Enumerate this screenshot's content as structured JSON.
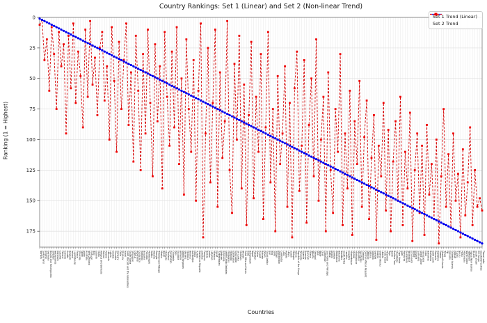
{
  "title": "Country Rankings: Set 1 (Linear) and Set 2 (Non-linear Trend)",
  "axes": {
    "x_label": "Countries",
    "y_label": "Ranking (1 = Highest)"
  },
  "legend": {
    "entries": [
      {
        "label": "Set 1 Trend (Linear)",
        "marker": "circle",
        "color": "#0000ee"
      },
      {
        "label": "Set 2 Trend",
        "marker": "square",
        "color": "#ee0000"
      }
    ]
  },
  "colors": {
    "blue_series": "#0000ee",
    "red_marker": "#ee0000",
    "red_line": "#d40000",
    "grid_h": "#e3e3e3",
    "grid_v": "#dedede",
    "spine": "#666666",
    "tick_text": "#222222"
  },
  "chart_data": {
    "type": "line",
    "title": "Country Rankings: Set 1 (Linear) and Set 2 (Non-linear Trend)",
    "xlabel": "Countries",
    "ylabel": "Ranking (1 = Highest)",
    "y_ticks": [
      0,
      25,
      50,
      75,
      100,
      125,
      150,
      175
    ],
    "y_axis_inverted": true,
    "ylim": [
      0,
      188
    ],
    "grid": true,
    "legend_position": "upper right",
    "categories": [
      "Norway",
      "Switzerland",
      "Iceland",
      "Germany",
      "Bosnia and Herzegovina",
      "Sweden",
      "Netherlands",
      "Denmark",
      "Czechia",
      "Finland",
      "Canada",
      "Austria",
      "Belgium",
      "Ireland",
      "Luxembourg",
      "France",
      "Slovenia",
      "Spain",
      "Japan",
      "Australia",
      "New Zealand",
      "Portugal",
      "Italy",
      "Estonia",
      "Malta",
      "Antigua and Barbuda",
      "Greece",
      "Poland",
      "Lithuania",
      "Latvia",
      "Croatia",
      "Slovakia",
      "Hungary",
      "Chile",
      "Uruguay",
      "Israel",
      "Saint Vincent and the Grenadines",
      "South Korea",
      "Singapore",
      "Cyprus",
      "Argentina",
      "Costa Rica",
      "Romania",
      "Bulgaria",
      "Panama",
      "Montenegro",
      "Serbia",
      "Albania",
      "Georgia",
      "Trinidad and Tobago",
      "Mexico",
      "Brazil",
      "Malaysia",
      "Thailand",
      "Kazakhstan",
      "Colombia",
      "Peru",
      "Ecuador",
      "Armenia",
      "United Kingdom",
      "Ukraine",
      "Moldova",
      "Belarus",
      "Azerbaijan",
      "China",
      "Tunisia",
      "Dominican Republic",
      "Jamaica",
      "Paraguay",
      "Bolivia",
      "Jordan",
      "Lebanon",
      "Morocco",
      "Egypt",
      "Turkmenistan",
      "Vietnam",
      "Indonesia",
      "United Arab Emirates",
      "Philippines",
      "Mongolia",
      "Uzbekistan",
      "Kyrgyzstan",
      "Sri Lanka",
      "Maldives",
      "Bhutan",
      "Saint Kitts and Nevis",
      "India",
      "Bangladesh",
      "Nepal",
      "Pakistan",
      "Qatar",
      "Kuwait",
      "Bahrain",
      "Oman",
      "Saudi Arabia",
      "Iran",
      "Iraq",
      "Syria",
      "Yemen",
      "Afghanistan",
      "Cambodia",
      "Laos",
      "Algeria",
      "Libya",
      "Sudan",
      "Ethiopia",
      "Kenya",
      "Republic of the Congo",
      "Tanzania",
      "Uganda",
      "Rwanda",
      "Burundi",
      "Ghana",
      "Nigeria",
      "Senegal",
      "Mali",
      "Niger",
      "Chad",
      "Cameroon",
      "Sao Tome and Principe",
      "Gabon",
      "Angola",
      "Zambia",
      "Zimbabwe",
      "Botswana",
      "Namibia",
      "South Africa",
      "Lesotho",
      "Eswatini",
      "Mozambique",
      "Malawi",
      "Madagascar",
      "Mauritius",
      "Seychelles",
      "Comoros",
      "Central African Republic",
      "Djibouti",
      "Eritrea",
      "Somalia",
      "Gambia",
      "Guinea",
      "Guinea-Bissau",
      "Liberia",
      "Ivory Coast",
      "Myanmar",
      "Togo",
      "Benin",
      "Burkina Faso",
      "Mauritania",
      "Cape Verde",
      "Haiti",
      "Honduras",
      "Guatemala",
      "Nicaragua",
      "El Salvador",
      "Belize",
      "Guyana",
      "Suriname",
      "Sierra Leone",
      "Venezuela",
      "Cuba",
      "Bahamas",
      "Barbados",
      "Saint Lucia",
      "Grenada",
      "Dominica",
      "Samoa",
      "Marshall Islands",
      "Tonga",
      "Fiji",
      "Vanuatu",
      "Solomon Islands",
      "Kiribati",
      "Tuvalu",
      "Nauru",
      "Palau",
      "Micronesia",
      "North Korea",
      "Tajikistan",
      "Papua New Guinea",
      "Brunei",
      "South Sudan",
      "DR Congo",
      "Equatorial Guinea",
      "Timor-Leste"
    ],
    "series": [
      {
        "name": "Set 1 Trend (Linear)",
        "color": "#0000ee",
        "marker": "circle",
        "line_style": "solid",
        "values": [
          1,
          2,
          3,
          4,
          5,
          6,
          7,
          8,
          9,
          10,
          11,
          12,
          13,
          14,
          15,
          16,
          17,
          18,
          19,
          20,
          21,
          22,
          23,
          24,
          25,
          26,
          27,
          28,
          29,
          30,
          31,
          32,
          33,
          34,
          35,
          36,
          37,
          38,
          39,
          40,
          41,
          42,
          43,
          44,
          45,
          46,
          47,
          48,
          49,
          50,
          51,
          52,
          53,
          54,
          55,
          56,
          57,
          58,
          59,
          60,
          61,
          62,
          63,
          64,
          65,
          66,
          67,
          68,
          69,
          70,
          71,
          72,
          73,
          74,
          75,
          76,
          77,
          78,
          79,
          80,
          81,
          82,
          83,
          84,
          85,
          86,
          87,
          88,
          89,
          90,
          91,
          92,
          93,
          94,
          95,
          96,
          97,
          98,
          99,
          100,
          101,
          102,
          103,
          104,
          105,
          106,
          107,
          108,
          109,
          110,
          111,
          112,
          113,
          114,
          115,
          116,
          117,
          118,
          119,
          120,
          121,
          122,
          123,
          124,
          125,
          126,
          127,
          128,
          129,
          130,
          131,
          132,
          133,
          134,
          135,
          136,
          137,
          138,
          139,
          140,
          141,
          142,
          143,
          144,
          145,
          146,
          147,
          148,
          149,
          150,
          151,
          152,
          153,
          154,
          155,
          156,
          157,
          158,
          159,
          160,
          161,
          162,
          163,
          164,
          165,
          166,
          167,
          168,
          169,
          170,
          171,
          172,
          173,
          174,
          175,
          176,
          177,
          178,
          179,
          180,
          181,
          182,
          183,
          184,
          185
        ]
      },
      {
        "name": "Set 2 Trend",
        "color": "#ee0000",
        "line_color": "#d40000",
        "marker": "square",
        "line_style": "dashed",
        "values": [
          6,
          2,
          35,
          18,
          60,
          8,
          30,
          75,
          12,
          40,
          22,
          95,
          15,
          58,
          5,
          70,
          28,
          48,
          90,
          10,
          65,
          3,
          55,
          33,
          80,
          25,
          12,
          68,
          40,
          100,
          8,
          52,
          110,
          20,
          75,
          35,
          5,
          88,
          45,
          118,
          15,
          60,
          125,
          30,
          95,
          10,
          70,
          130,
          22,
          85,
          40,
          140,
          12,
          65,
          105,
          28,
          90,
          8,
          120,
          50,
          145,
          18,
          75,
          110,
          35,
          150,
          60,
          5,
          180,
          95,
          25,
          135,
          70,
          10,
          155,
          45,
          115,
          85,
          3,
          125,
          160,
          38,
          100,
          15,
          140,
          55,
          170,
          80,
          20,
          148,
          65,
          110,
          30,
          165,
          90,
          12,
          135,
          75,
          175,
          48,
          120,
          95,
          40,
          155,
          70,
          180,
          58,
          28,
          142,
          105,
          35,
          168,
          88,
          50,
          130,
          18,
          150,
          100,
          65,
          175,
          45,
          125,
          160,
          75,
          110,
          30,
          170,
          95,
          140,
          60,
          178,
          85,
          120,
          52,
          155,
          98,
          68,
          165,
          115,
          80,
          182,
          105,
          130,
          70,
          158,
          92,
          175,
          118,
          85,
          150,
          65,
          170,
          110,
          140,
          78,
          183,
          125,
          95,
          160,
          105,
          178,
          88,
          145,
          120,
          165,
          100,
          185,
          130,
          75,
          155,
          112,
          172,
          95,
          150,
          128,
          180,
          108,
          162,
          135,
          90,
          170,
          125,
          155,
          148,
          158
        ]
      }
    ]
  }
}
